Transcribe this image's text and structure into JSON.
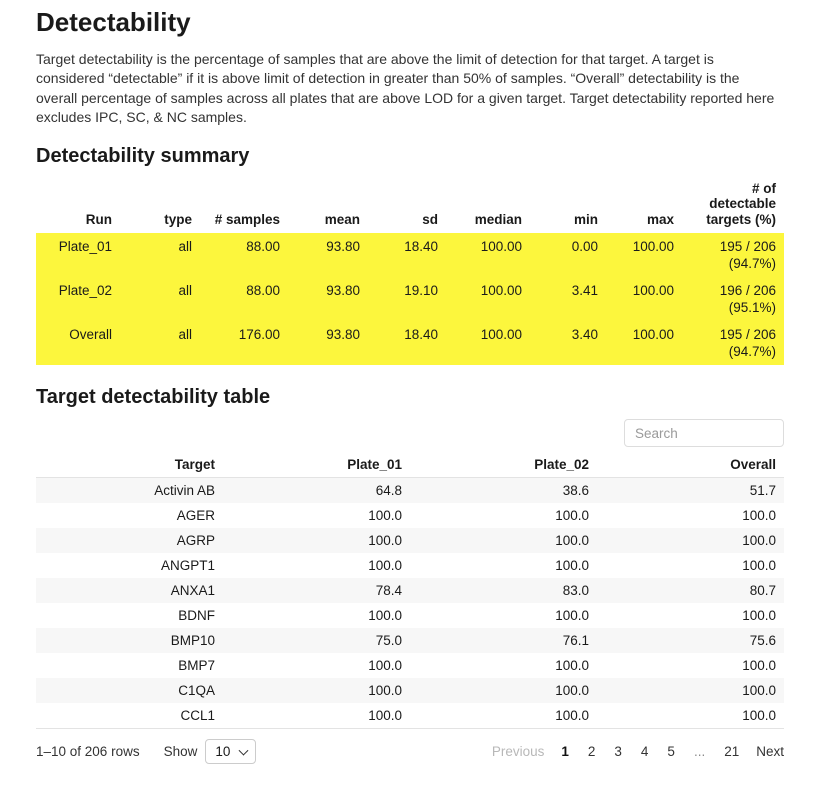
{
  "page": {
    "title": "Detectability",
    "description": "Target detectability is the percentage of samples that are above the limit of detection for that target. A target is considered “detectable” if it is above limit of detection in greater than 50% of samples. “Overall” detectability is the overall percentage of samples across all plates that are above LOD for a given target. Target detectability reported here excludes IPC, SC, & NC samples."
  },
  "summary": {
    "heading": "Detectability summary",
    "highlight_color": "#FCF63D",
    "columns": [
      "Run",
      "type",
      "# samples",
      "mean",
      "sd",
      "median",
      "min",
      "max",
      "# of detectable targets (%)"
    ],
    "rows": [
      [
        "Plate_01",
        "all",
        "88.00",
        "93.80",
        "18.40",
        "100.00",
        "0.00",
        "100.00",
        "195 / 206 (94.7%)"
      ],
      [
        "Plate_02",
        "all",
        "88.00",
        "93.80",
        "19.10",
        "100.00",
        "3.41",
        "100.00",
        "196 / 206 (95.1%)"
      ],
      [
        "Overall",
        "all",
        "176.00",
        "93.80",
        "18.40",
        "100.00",
        "3.40",
        "100.00",
        "195 / 206 (94.7%)"
      ]
    ]
  },
  "target": {
    "heading": "Target detectability table",
    "search_placeholder": "Search",
    "columns": [
      "Target",
      "Plate_01",
      "Plate_02",
      "Overall"
    ],
    "rows": [
      [
        "Activin AB",
        "64.8",
        "38.6",
        "51.7"
      ],
      [
        "AGER",
        "100.0",
        "100.0",
        "100.0"
      ],
      [
        "AGRP",
        "100.0",
        "100.0",
        "100.0"
      ],
      [
        "ANGPT1",
        "100.0",
        "100.0",
        "100.0"
      ],
      [
        "ANXA1",
        "78.4",
        "83.0",
        "80.7"
      ],
      [
        "BDNF",
        "100.0",
        "100.0",
        "100.0"
      ],
      [
        "BMP10",
        "75.0",
        "76.1",
        "75.6"
      ],
      [
        "BMP7",
        "100.0",
        "100.0",
        "100.0"
      ],
      [
        "C1QA",
        "100.0",
        "100.0",
        "100.0"
      ],
      [
        "CCL1",
        "100.0",
        "100.0",
        "100.0"
      ]
    ],
    "pagination": {
      "info": "1–10 of 206 rows",
      "show_label": "Show",
      "page_size": "10",
      "previous_label": "Previous",
      "pages": [
        "1",
        "2",
        "3",
        "4",
        "5",
        "...",
        "21"
      ],
      "current_page": "1",
      "next_label": "Next"
    }
  }
}
